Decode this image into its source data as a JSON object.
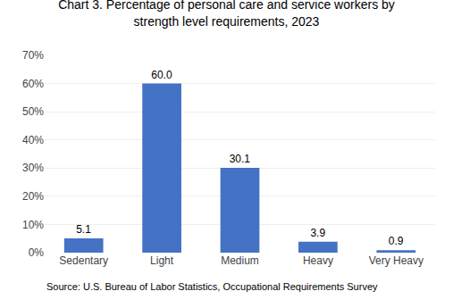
{
  "chart_data": {
    "type": "bar",
    "title": "Chart 3. Percentage of personal care and service workers by\nstrength level requirements, 2023",
    "categories": [
      "Sedentary",
      "Light",
      "Medium",
      "Heavy",
      "Very Heavy"
    ],
    "values": [
      5.1,
      60.0,
      30.1,
      3.9,
      0.9
    ],
    "value_labels": [
      "5.1",
      "60.0",
      "30.1",
      "3.9",
      "0.9"
    ],
    "data_labels": true,
    "color": "#4472C4",
    "ylim": [
      0,
      70
    ],
    "yticks": [
      {
        "value": 0,
        "label": "0%"
      },
      {
        "value": 10,
        "label": "10%"
      },
      {
        "value": 20,
        "label": "20%"
      },
      {
        "value": 30,
        "label": "30%"
      },
      {
        "value": 40,
        "label": "40%"
      },
      {
        "value": 50,
        "label": "50%"
      },
      {
        "value": 60,
        "label": "60%"
      },
      {
        "value": 70,
        "label": "70%"
      }
    ],
    "grid": true,
    "source": "Source: U.S. Bureau of Labor Statistics, Occupational Requirements Survey"
  }
}
